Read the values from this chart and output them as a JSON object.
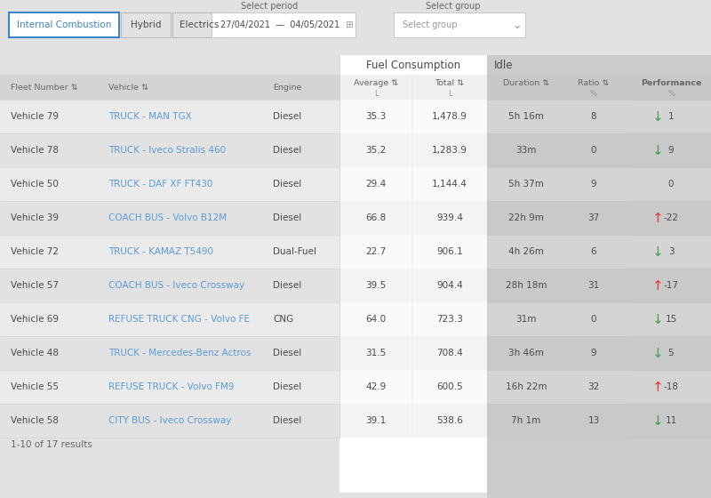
{
  "bg_color": "#e2e2e2",
  "white": "#ffffff",
  "header_bg": "#d4d4d4",
  "fuel_white": "#ffffff",
  "idle_bg": "#cbcbcb",
  "tab_blue": "#3d85c8",
  "link_color": "#5b9bd5",
  "text_dark": "#4a4a4a",
  "text_med": "#666666",
  "text_light": "#999999",
  "arrow_green": "#43a047",
  "arrow_red": "#e53935",
  "row_colors": [
    "#ececec",
    "#e2e2e2"
  ],
  "fuel_row_colors": [
    "#f9f9f9",
    "#f0f0f0"
  ],
  "idle_row_colors": [
    "#d9d9d9",
    "#cecece"
  ],
  "filter_buttons": [
    "Internal Combustion",
    "Hybrid",
    "Electrics"
  ],
  "period_label": "Select period",
  "period_value": "27/04/2021  —  04/05/2021",
  "group_label": "Select group",
  "group_value": "Select group",
  "fuel_label": "Fuel Consumption",
  "idle_label": "Idle",
  "footer": "1-10 of 17 results",
  "rows": [
    {
      "fleet": "Vehicle 79",
      "vehicle": "TRUCK - MAN TGX",
      "engine": "Diesel",
      "avg": "35.3",
      "total": "1,478.9",
      "duration": "5h 16m",
      "ratio": "8",
      "arrow": "down",
      "perf": "1"
    },
    {
      "fleet": "Vehicle 78",
      "vehicle": "TRUCK - Iveco Stralis 460",
      "engine": "Diesel",
      "avg": "35.2",
      "total": "1,283.9",
      "duration": "33m",
      "ratio": "0",
      "arrow": "down",
      "perf": "9"
    },
    {
      "fleet": "Vehicle 50",
      "vehicle": "TRUCK - DAF XF FT430",
      "engine": "Diesel",
      "avg": "29.4",
      "total": "1,144.4",
      "duration": "5h 37m",
      "ratio": "9",
      "arrow": "none",
      "perf": "0"
    },
    {
      "fleet": "Vehicle 39",
      "vehicle": "COACH BUS - Volvo B12M",
      "engine": "Diesel",
      "avg": "66.8",
      "total": "939.4",
      "duration": "22h 9m",
      "ratio": "37",
      "arrow": "up",
      "perf": "-22"
    },
    {
      "fleet": "Vehicle 72",
      "vehicle": "TRUCK - KAMAZ T5490",
      "engine": "Dual-Fuel",
      "avg": "22.7",
      "total": "906.1",
      "duration": "4h 26m",
      "ratio": "6",
      "arrow": "down",
      "perf": "3"
    },
    {
      "fleet": "Vehicle 57",
      "vehicle": "COACH BUS - Iveco Crossway",
      "engine": "Diesel",
      "avg": "39.5",
      "total": "904.4",
      "duration": "28h 18m",
      "ratio": "31",
      "arrow": "up",
      "perf": "-17"
    },
    {
      "fleet": "Vehicle 69",
      "vehicle": "REFUSE TRUCK CNG - Volvo FE",
      "engine": "CNG",
      "avg": "64.0",
      "total": "723.3",
      "duration": "31m",
      "ratio": "0",
      "arrow": "down",
      "perf": "15"
    },
    {
      "fleet": "Vehicle 48",
      "vehicle": "TRUCK - Mercedes-Benz Actros",
      "engine": "Diesel",
      "avg": "31.5",
      "total": "708.4",
      "duration": "3h 46m",
      "ratio": "9",
      "arrow": "down",
      "perf": "5"
    },
    {
      "fleet": "Vehicle 55",
      "vehicle": "REFUSE TRUCK - Volvo FM9",
      "engine": "Diesel",
      "avg": "42.9",
      "total": "600.5",
      "duration": "16h 22m",
      "ratio": "32",
      "arrow": "up",
      "perf": "-18"
    },
    {
      "fleet": "Vehicle 58",
      "vehicle": "CITY BUS - Iveco Crossway",
      "engine": "Diesel",
      "avg": "39.1",
      "total": "538.6",
      "duration": "7h 1m",
      "ratio": "13",
      "arrow": "down",
      "perf": "11"
    }
  ]
}
